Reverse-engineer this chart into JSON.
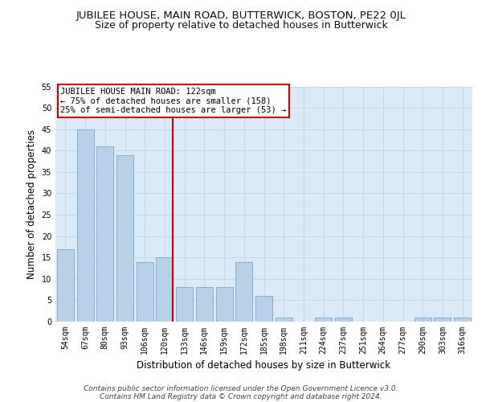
{
  "title": "JUBILEE HOUSE, MAIN ROAD, BUTTERWICK, BOSTON, PE22 0JL",
  "subtitle": "Size of property relative to detached houses in Butterwick",
  "xlabel": "Distribution of detached houses by size in Butterwick",
  "ylabel": "Number of detached properties",
  "categories": [
    "54sqm",
    "67sqm",
    "80sqm",
    "93sqm",
    "106sqm",
    "120sqm",
    "133sqm",
    "146sqm",
    "159sqm",
    "172sqm",
    "185sqm",
    "198sqm",
    "211sqm",
    "224sqm",
    "237sqm",
    "251sqm",
    "264sqm",
    "277sqm",
    "290sqm",
    "303sqm",
    "316sqm"
  ],
  "values": [
    17,
    45,
    41,
    39,
    14,
    15,
    8,
    8,
    8,
    14,
    6,
    1,
    0,
    1,
    1,
    0,
    0,
    0,
    1,
    1,
    1
  ],
  "bar_color": "#b8d0e8",
  "bar_edge_color": "#6a9fc0",
  "grid_color": "#c5d8ec",
  "background_color": "#daeaf6",
  "vline_x_index": 5,
  "vline_color": "#cc0000",
  "annotation_lines": [
    "JUBILEE HOUSE MAIN ROAD: 122sqm",
    "← 75% of detached houses are smaller (158)",
    "25% of semi-detached houses are larger (53) →"
  ],
  "annotation_box_color": "#ffffff",
  "annotation_box_edge": "#cc0000",
  "footer_line1": "Contains HM Land Registry data © Crown copyright and database right 2024.",
  "footer_line2": "Contains public sector information licensed under the Open Government Licence v3.0.",
  "ylim": [
    0,
    55
  ],
  "yticks": [
    0,
    5,
    10,
    15,
    20,
    25,
    30,
    35,
    40,
    45,
    50,
    55
  ],
  "title_fontsize": 9.5,
  "subtitle_fontsize": 9,
  "axis_label_fontsize": 8.5,
  "tick_fontsize": 7,
  "footer_fontsize": 6.5,
  "annotation_fontsize": 7.5
}
